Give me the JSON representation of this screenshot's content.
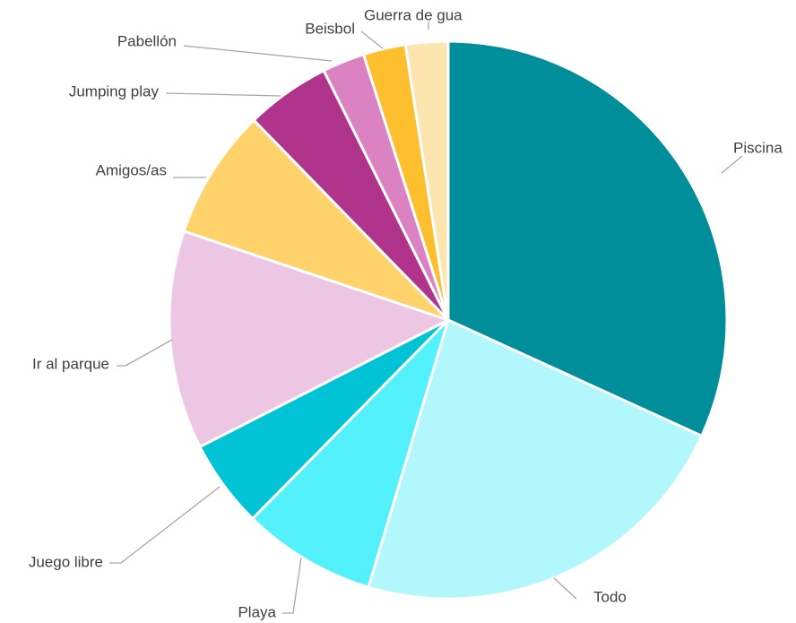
{
  "chart_data": {
    "type": "pie",
    "title": "",
    "slices": [
      {
        "label": "Piscina",
        "value": 32.4,
        "color": "#008e9b"
      },
      {
        "label": "Todo",
        "value": 23.2,
        "color": "#b2f7fc"
      },
      {
        "label": "Playa",
        "value": 7.9,
        "color": "#52f1fb"
      },
      {
        "label": "Juego libre",
        "value": 5.2,
        "color": "#00c3d6"
      },
      {
        "label": "Ir al parque",
        "value": 12.9,
        "color": "#edc6e3"
      },
      {
        "label": "Amigos/as",
        "value": 7.7,
        "color": "#ffd26b"
      },
      {
        "label": "Jumping play",
        "value": 5.0,
        "color": "#b0338c"
      },
      {
        "label": "Pabellón",
        "value": 2.5,
        "color": "#db82c3"
      },
      {
        "label": "Beisbol",
        "value": 2.5,
        "color": "#fdbf2d"
      },
      {
        "label": "Guerra de gua",
        "value": 2.5,
        "color": "#fde5b0"
      }
    ],
    "legend": "none",
    "data_labels": "category names with leader lines"
  }
}
